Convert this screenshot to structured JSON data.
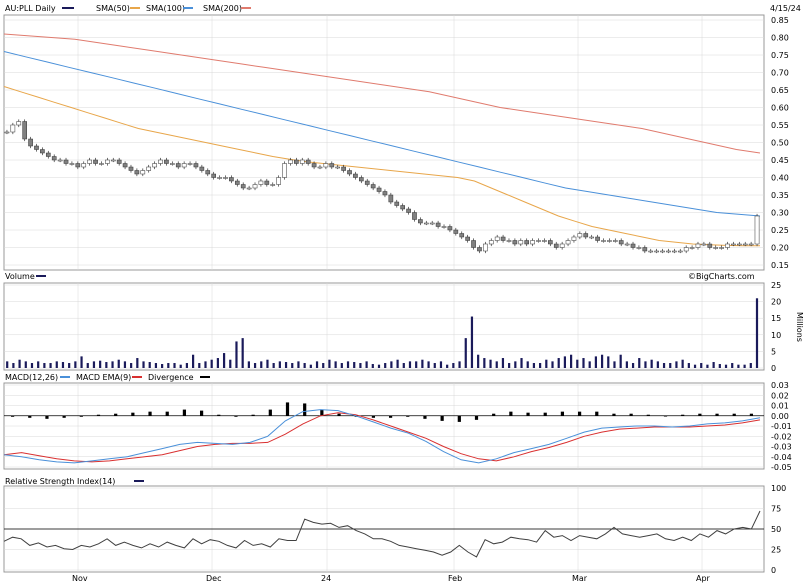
{
  "header": {
    "symbol_label": "AU:PLL Daily",
    "date": "4/15/24",
    "sma50_label": "SMA(50)",
    "sma100_label": "SMA(100)",
    "sma200_label": "SMA(200)"
  },
  "volume_panel": {
    "label": "Volume",
    "unit": "Millions",
    "credit": "©BigCharts.com"
  },
  "macd_panel": {
    "macd_label": "MACD(12,26)",
    "ema_label": "MACD EMA(9)",
    "divergence_label": "Divergence"
  },
  "rsi_panel": {
    "label": "Relative Strength Index(14)"
  },
  "colors": {
    "price_up": "#ffffff",
    "price_down": "#808080",
    "sma50": "#e8a64a",
    "sma100": "#4a90d9",
    "sma200": "#e07b6e",
    "volume": "#1a1a5a",
    "macd": "#4a90d9",
    "macd_ema": "#d93030",
    "divergence": "#000000",
    "rsi": "#404040",
    "grid": "#d8d8d8"
  },
  "chart_data": [
    {
      "type": "candlestick",
      "title": "AU:PLL Daily",
      "x_ticks": [
        "Nov",
        "Dec",
        "24",
        "Feb",
        "Mar",
        "Apr"
      ],
      "y_ticks": [
        0.15,
        0.2,
        0.25,
        0.3,
        0.35,
        0.4,
        0.45,
        0.5,
        0.55,
        0.6,
        0.65,
        0.7,
        0.75,
        0.8,
        0.85
      ],
      "ylim": [
        0.15,
        0.85
      ],
      "close": [
        0.53,
        0.55,
        0.56,
        0.51,
        0.49,
        0.48,
        0.47,
        0.46,
        0.45,
        0.45,
        0.44,
        0.44,
        0.43,
        0.44,
        0.45,
        0.44,
        0.44,
        0.45,
        0.45,
        0.44,
        0.43,
        0.42,
        0.41,
        0.42,
        0.43,
        0.44,
        0.45,
        0.44,
        0.44,
        0.43,
        0.44,
        0.44,
        0.43,
        0.42,
        0.41,
        0.4,
        0.4,
        0.4,
        0.39,
        0.38,
        0.37,
        0.37,
        0.38,
        0.39,
        0.38,
        0.38,
        0.4,
        0.44,
        0.45,
        0.44,
        0.45,
        0.44,
        0.43,
        0.43,
        0.44,
        0.43,
        0.43,
        0.42,
        0.41,
        0.4,
        0.39,
        0.38,
        0.37,
        0.36,
        0.35,
        0.33,
        0.32,
        0.31,
        0.3,
        0.28,
        0.27,
        0.27,
        0.27,
        0.26,
        0.26,
        0.25,
        0.24,
        0.23,
        0.22,
        0.2,
        0.19,
        0.21,
        0.22,
        0.23,
        0.22,
        0.22,
        0.21,
        0.22,
        0.21,
        0.22,
        0.22,
        0.22,
        0.21,
        0.2,
        0.21,
        0.22,
        0.23,
        0.24,
        0.23,
        0.23,
        0.22,
        0.22,
        0.22,
        0.22,
        0.21,
        0.21,
        0.2,
        0.2,
        0.19,
        0.19,
        0.19,
        0.19,
        0.19,
        0.19,
        0.19,
        0.2,
        0.2,
        0.21,
        0.21,
        0.2,
        0.2,
        0.2,
        0.21,
        0.21,
        0.21,
        0.21,
        0.21,
        0.29
      ],
      "sma50": [
        0.66,
        0.645,
        0.63,
        0.615,
        0.6,
        0.585,
        0.57,
        0.555,
        0.54,
        0.53,
        0.52,
        0.51,
        0.5,
        0.49,
        0.48,
        0.47,
        0.46,
        0.452,
        0.445,
        0.44,
        0.435,
        0.43,
        0.425,
        0.42,
        0.415,
        0.41,
        0.405,
        0.4,
        0.39,
        0.37,
        0.35,
        0.33,
        0.31,
        0.29,
        0.275,
        0.26,
        0.25,
        0.24,
        0.23,
        0.22,
        0.215,
        0.21,
        0.208,
        0.206,
        0.205,
        0.205
      ],
      "sma100": [
        0.76,
        0.745,
        0.73,
        0.715,
        0.7,
        0.685,
        0.67,
        0.655,
        0.64,
        0.625,
        0.61,
        0.595,
        0.58,
        0.565,
        0.55,
        0.535,
        0.52,
        0.505,
        0.49,
        0.475,
        0.46,
        0.445,
        0.43,
        0.415,
        0.4,
        0.385,
        0.37,
        0.36,
        0.35,
        0.34,
        0.33,
        0.32,
        0.31,
        0.3,
        0.295,
        0.29
      ],
      "sma200": [
        0.81,
        0.805,
        0.8,
        0.795,
        0.785,
        0.775,
        0.765,
        0.755,
        0.745,
        0.735,
        0.725,
        0.715,
        0.705,
        0.695,
        0.685,
        0.675,
        0.665,
        0.655,
        0.645,
        0.63,
        0.615,
        0.6,
        0.59,
        0.58,
        0.57,
        0.56,
        0.55,
        0.54,
        0.525,
        0.51,
        0.495,
        0.48,
        0.47
      ]
    },
    {
      "type": "bar",
      "title": "Volume",
      "y_ticks": [
        0,
        5,
        10,
        15,
        20,
        25
      ],
      "ylim": [
        0,
        25
      ],
      "ylabel": "Millions",
      "values": [
        2,
        1.5,
        2.5,
        2,
        1.5,
        2,
        1.5,
        1.5,
        2,
        1.8,
        1.5,
        2,
        3.5,
        1.5,
        2,
        2.2,
        1.8,
        2,
        2.5,
        2,
        1.5,
        3,
        2,
        1.8,
        1.5,
        1.2,
        1.5,
        1.5,
        1,
        1.5,
        4,
        1.5,
        2,
        2.5,
        3,
        4.5,
        2.5,
        8,
        9,
        2,
        1.5,
        2,
        2.5,
        1.5,
        2,
        1.8,
        1.5,
        2,
        1.5,
        1,
        2,
        1.5,
        2.5,
        2,
        1.5,
        2,
        1.8,
        1.5,
        2,
        1.2,
        1,
        1.5,
        2,
        2.5,
        1.5,
        2,
        2,
        2.5,
        2,
        1.5,
        2,
        1,
        1.5,
        2,
        9,
        15.5,
        4,
        3,
        2.5,
        2,
        3,
        1.5,
        2,
        3,
        2,
        1.5,
        1.5,
        2.5,
        2,
        3,
        3.5,
        4,
        2.5,
        3,
        2,
        3.5,
        4,
        3.5,
        2,
        4,
        2,
        1.5,
        3,
        2,
        2.5,
        2,
        1.5,
        1.5,
        2,
        2.5,
        1.5,
        1,
        1.5,
        1,
        1.8,
        1.2,
        1,
        1.5,
        1,
        1,
        1.5,
        21
      ]
    },
    {
      "type": "line",
      "title": "MACD(12,26)",
      "y_ticks": [
        0.03,
        0.02,
        0.01,
        0.0,
        -0.01,
        -0.02,
        -0.03,
        -0.04,
        -0.05
      ],
      "ylim": [
        -0.05,
        0.03
      ],
      "series": [
        {
          "name": "MACD(12,26)",
          "values": [
            -0.038,
            -0.04,
            -0.043,
            -0.045,
            -0.046,
            -0.044,
            -0.042,
            -0.04,
            -0.036,
            -0.032,
            -0.028,
            -0.026,
            -0.027,
            -0.028,
            -0.026,
            -0.02,
            -0.005,
            0.004,
            0.006,
            0.005,
            0.0,
            -0.006,
            -0.012,
            -0.017,
            -0.025,
            -0.035,
            -0.043,
            -0.046,
            -0.042,
            -0.036,
            -0.032,
            -0.028,
            -0.022,
            -0.016,
            -0.012,
            -0.011,
            -0.01,
            -0.01,
            -0.011,
            -0.01,
            -0.008,
            -0.007,
            -0.005,
            -0.002
          ]
        },
        {
          "name": "MACD EMA(9)",
          "values": [
            -0.038,
            -0.036,
            -0.039,
            -0.042,
            -0.044,
            -0.045,
            -0.044,
            -0.042,
            -0.04,
            -0.038,
            -0.034,
            -0.03,
            -0.028,
            -0.027,
            -0.027,
            -0.026,
            -0.018,
            -0.008,
            0.0,
            0.003,
            0.001,
            -0.004,
            -0.01,
            -0.016,
            -0.022,
            -0.03,
            -0.037,
            -0.042,
            -0.044,
            -0.04,
            -0.035,
            -0.031,
            -0.026,
            -0.02,
            -0.016,
            -0.013,
            -0.012,
            -0.011,
            -0.011,
            -0.011,
            -0.01,
            -0.009,
            -0.007,
            -0.004
          ]
        },
        {
          "name": "Divergence",
          "values": [
            -0.001,
            -0.002,
            -0.003,
            -0.002,
            -0.001,
            0.001,
            0.002,
            0.003,
            0.004,
            0.004,
            0.006,
            0.005,
            0.001,
            -0.001,
            0.001,
            0.006,
            0.013,
            0.012,
            0.006,
            0.002,
            -0.001,
            -0.002,
            -0.002,
            -0.001,
            -0.003,
            -0.005,
            -0.006,
            -0.004,
            0.002,
            0.004,
            0.003,
            0.003,
            0.004,
            0.004,
            0.004,
            0.002,
            0.002,
            0.001,
            0.0,
            0.001,
            0.002,
            0.002,
            0.002,
            0.002
          ]
        }
      ]
    },
    {
      "type": "line",
      "title": "Relative Strength Index(14)",
      "y_ticks": [
        0,
        25,
        50,
        75,
        100
      ],
      "ylim": [
        0,
        100
      ],
      "reference_line": 50,
      "values": [
        35,
        40,
        38,
        30,
        33,
        28,
        30,
        26,
        25,
        30,
        28,
        32,
        38,
        30,
        34,
        30,
        27,
        32,
        28,
        34,
        30,
        27,
        38,
        32,
        37,
        35,
        30,
        27,
        36,
        30,
        32,
        28,
        38,
        36,
        36,
        62,
        58,
        56,
        57,
        52,
        54,
        48,
        44,
        38,
        38,
        35,
        30,
        28,
        26,
        24,
        22,
        18,
        22,
        30,
        22,
        16,
        37,
        32,
        34,
        40,
        38,
        37,
        34,
        48,
        40,
        42,
        36,
        42,
        40,
        38,
        44,
        52,
        44,
        42,
        40,
        42,
        44,
        38,
        36,
        40,
        36,
        44,
        40,
        48,
        44,
        50,
        52,
        50,
        72
      ]
    }
  ]
}
